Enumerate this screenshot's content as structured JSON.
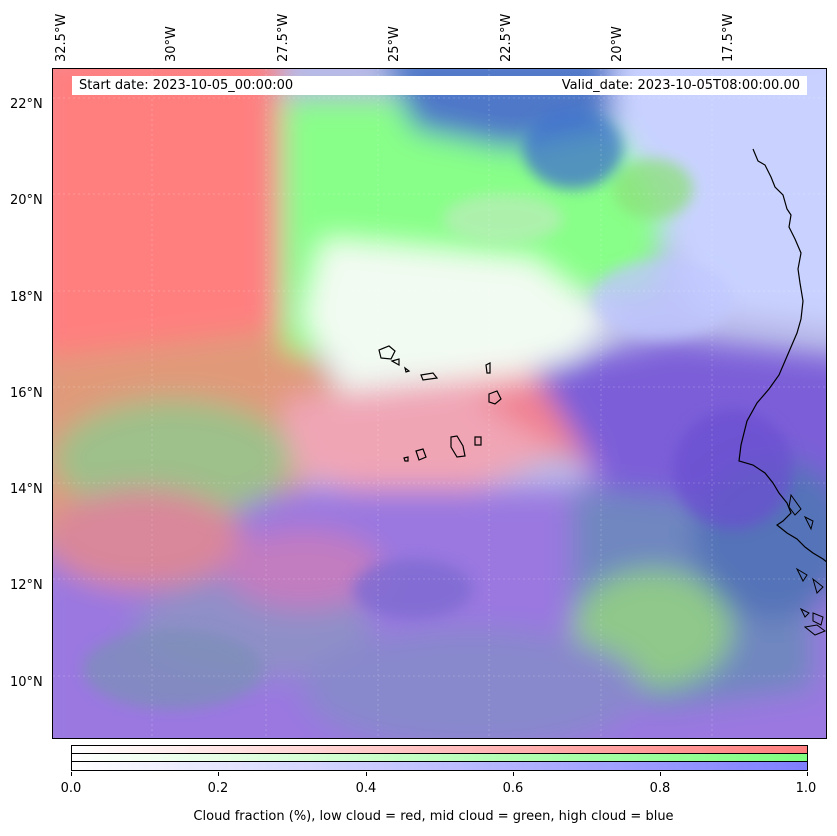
{
  "map": {
    "start_date": "Start date: 2023-10-05_00:00:00",
    "valid_date": "Valid_date: 2023-10-05T08:00:00.00",
    "lon_labels": [
      "32.5°W",
      "30°W",
      "27.5°W",
      "25°W",
      "22.5°W",
      "20°W",
      "17.5°W"
    ],
    "lat_labels": [
      "22°N",
      "20°N",
      "18°N",
      "16°N",
      "14°N",
      "12°N",
      "10°N"
    ],
    "colors": {
      "low_cloud": "#ff8080",
      "mid_cloud": "#80ff80",
      "high_cloud": "#8080ff",
      "ocean_dark": "#4a6fb5",
      "coast": "#000000"
    }
  },
  "colorbar": {
    "tick_labels": [
      "0.0",
      "0.2",
      "0.4",
      "0.6",
      "0.8",
      "1.0"
    ],
    "caption": "Cloud fraction (%), low cloud = red, mid cloud = green, high cloud = blue"
  }
}
